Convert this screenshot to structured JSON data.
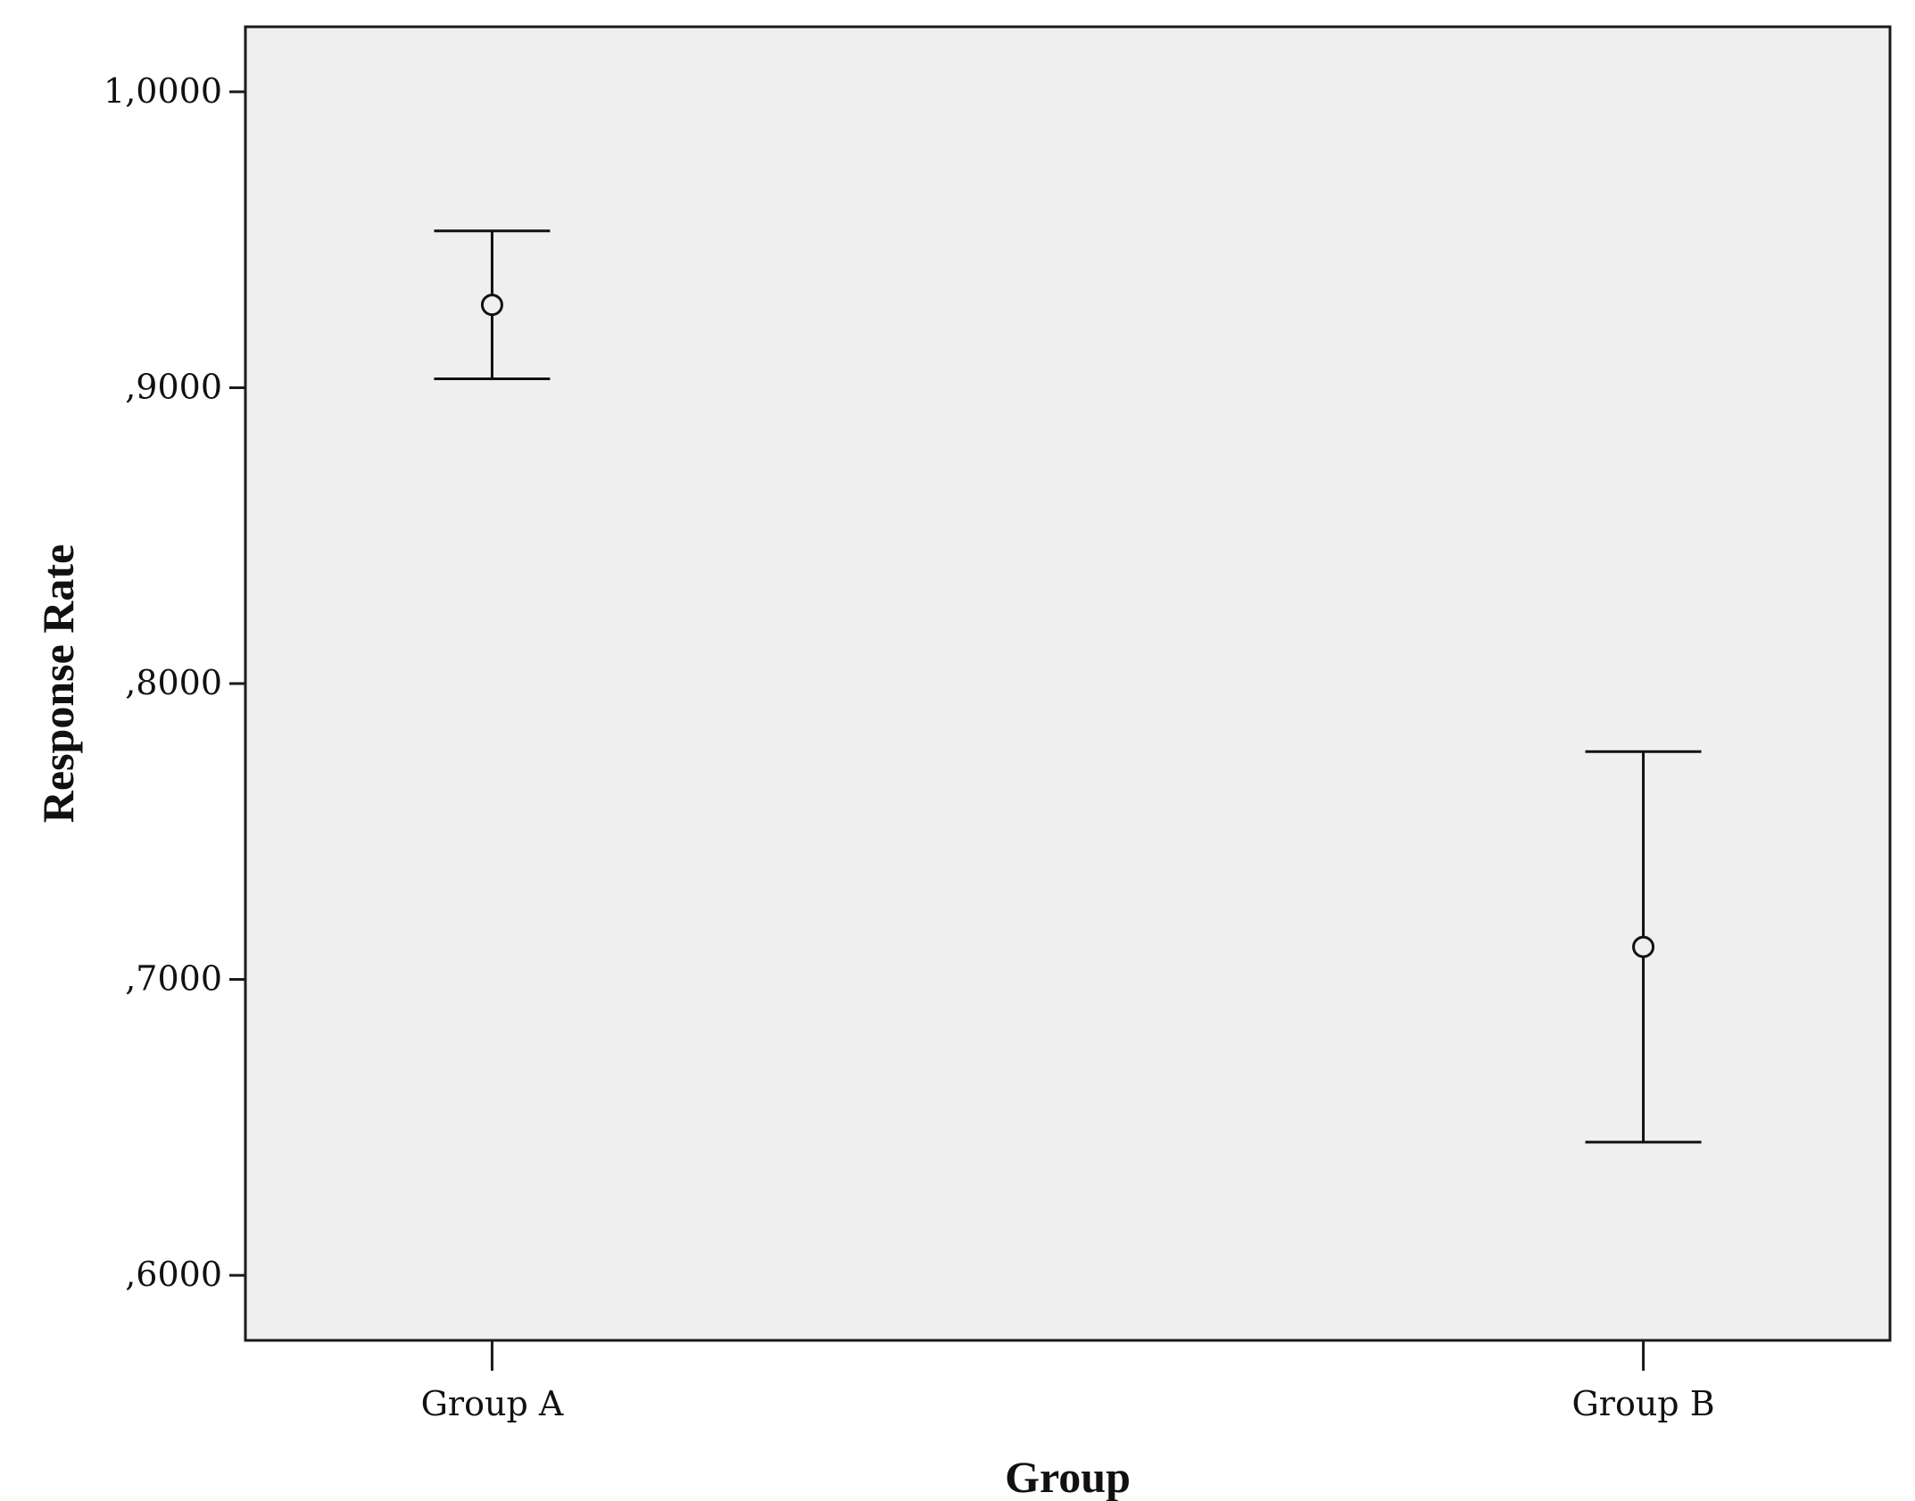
{
  "chart_data": {
    "type": "errorbar",
    "xlabel": "Group",
    "ylabel": "Response Rate",
    "categories": [
      "Group A",
      "Group B"
    ],
    "points": [
      {
        "category": "Group A",
        "mean": 0.928,
        "lower": 0.903,
        "upper": 0.953
      },
      {
        "category": "Group B",
        "mean": 0.711,
        "lower": 0.645,
        "upper": 0.777
      }
    ],
    "ylim": [
      0.578,
      1.022
    ],
    "yticks": [
      {
        "value": 0.6,
        "label": ",6000"
      },
      {
        "value": 0.7,
        "label": ",7000"
      },
      {
        "value": 0.8,
        "label": ",8000"
      },
      {
        "value": 0.9,
        "label": ",9000"
      },
      {
        "value": 1.0,
        "label": "1,0000"
      }
    ],
    "grid": false,
    "colors": {
      "plot_background": "#efefef",
      "frame": "#1a1a1a",
      "marks": "#111111"
    }
  }
}
